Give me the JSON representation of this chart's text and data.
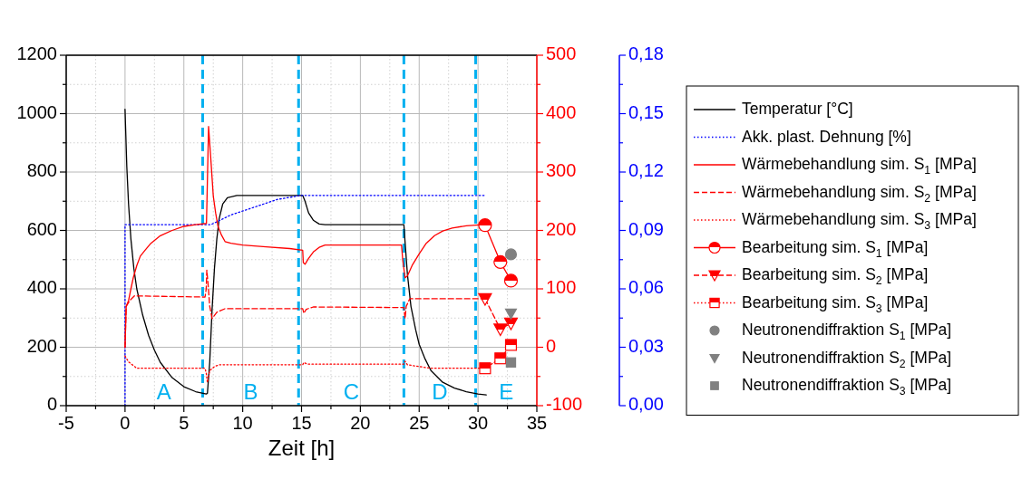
{
  "chart_data": {
    "type": "line",
    "xlabel": "Zeit [h]",
    "xlim": [
      -5,
      35
    ],
    "xticks": [
      -5,
      {
        "value": -2.5,
        "label": null
      },
      0,
      {
        "value": 2.5,
        "label": null
      },
      5,
      {
        "value": 7.5,
        "label": null
      },
      10,
      {
        "value": 12.5,
        "label": null
      },
      15,
      {
        "value": 17.5,
        "label": null
      },
      20,
      {
        "value": 22.5,
        "label": null
      },
      25,
      {
        "value": 27.5,
        "label": null
      },
      30,
      {
        "value": 32.5,
        "label": null
      },
      35
    ],
    "ylim": [
      0,
      1200
    ],
    "yticks": [
      0,
      {
        "value": 100,
        "label": null
      },
      200,
      {
        "value": 300,
        "label": null
      },
      400,
      {
        "value": 500,
        "label": null
      },
      600,
      {
        "value": 700,
        "label": null
      },
      800,
      {
        "value": 900,
        "label": null
      },
      1000,
      {
        "value": 1100,
        "label": null
      },
      1200
    ],
    "y2lim": [
      -100,
      500
    ],
    "y2ticks": [
      -100,
      {
        "value": -50,
        "label": null
      },
      0,
      {
        "value": 50,
        "label": null
      },
      100,
      {
        "value": 150,
        "label": null
      },
      200,
      {
        "value": 250,
        "label": null
      },
      300,
      {
        "value": 350,
        "label": null
      },
      400,
      {
        "value": 450,
        "label": null
      },
      500
    ],
    "y3lim": [
      0,
      0.18
    ],
    "y3ticks": [
      {
        "value": 0,
        "label": "0,00"
      },
      {
        "value": 0.015,
        "label": null
      },
      {
        "value": 0.03,
        "label": "0,03"
      },
      {
        "value": 0.045,
        "label": null
      },
      {
        "value": 0.06,
        "label": "0,06"
      },
      {
        "value": 0.075,
        "label": null
      },
      {
        "value": 0.09,
        "label": "0,09"
      },
      {
        "value": 0.105,
        "label": null
      },
      {
        "value": 0.12,
        "label": "0,12"
      },
      {
        "value": 0.135,
        "label": null
      },
      {
        "value": 0.15,
        "label": "0,15"
      },
      {
        "value": 0.165,
        "label": null
      },
      {
        "value": 0.18,
        "label": "0,18"
      }
    ],
    "grid": true,
    "legend": "right",
    "ref_lines": [
      {
        "axis": "x",
        "value": 6.6,
        "color": "#00b0f0",
        "line_style": "dashed"
      },
      {
        "axis": "x",
        "value": 14.75,
        "color": "#00b0f0",
        "line_style": "dashed"
      },
      {
        "axis": "x",
        "value": 23.7,
        "color": "#00b0f0",
        "line_style": "dashed"
      },
      {
        "axis": "x",
        "value": 29.8,
        "color": "#00b0f0",
        "line_style": "dashed"
      }
    ],
    "annotations": [
      "A",
      "B",
      "C",
      "D",
      "E"
    ],
    "series": [
      {
        "name": "Temperatur [°C]",
        "type": "line",
        "color": "#000000",
        "line_style": "solid",
        "x": [
          0,
          0.05,
          0.15,
          0.3,
          0.5,
          0.75,
          1,
          1.5,
          2,
          2.5,
          3,
          4,
          5,
          6,
          6.9,
          7.0,
          7.2,
          7.4,
          7.6,
          7.8,
          8.0,
          8.3,
          8.7,
          9.5,
          12,
          15.1,
          15.3,
          15.6,
          16,
          16.5,
          17,
          20,
          23.7,
          23.8,
          24,
          24.3,
          24.7,
          25,
          25.5,
          26,
          27,
          28,
          29,
          30,
          30.7
        ],
        "values": [
          1015,
          950,
          820,
          690,
          570,
          470,
          400,
          310,
          241,
          190,
          148,
          96,
          65,
          48,
          40,
          42,
          150,
          330,
          470,
          570,
          640,
          690,
          712,
          720,
          720,
          720,
          700,
          660,
          635,
          622,
          620,
          620,
          620,
          560,
          450,
          340,
          260,
          210,
          160,
          120,
          80,
          60,
          48,
          40,
          37
        ]
      },
      {
        "name": "Akk. plast. Dehnung [%]",
        "type": "line",
        "axis": "y3",
        "color": "#0000ff",
        "line_style": "dotted",
        "x": [
          0,
          0,
          7.3,
          8,
          9,
          10,
          11,
          12,
          13,
          14,
          14.9,
          30.6
        ],
        "values": [
          0,
          0.093,
          0.093,
          0.095,
          0.098,
          0.1,
          0.102,
          0.104,
          0.106,
          0.107,
          0.108,
          0.108
        ]
      },
      {
        "name": "Wärmebehandlung sim. S$_{1}$ [MPa]",
        "type": "line",
        "axis": "y2",
        "color": "#ff0000",
        "line_style": "solid",
        "x": [
          0,
          0.1,
          0.3,
          0.5,
          0.7,
          1,
          1.3,
          1.7,
          2.2,
          3,
          4,
          5,
          6,
          6.92,
          6.95,
          7.1,
          7.3,
          7.5,
          7.7,
          7.9,
          8.2,
          8.5,
          9,
          10,
          12,
          14,
          15.1,
          15.15,
          15.3,
          15.6,
          16,
          16.5,
          17,
          20,
          23.5,
          23.6,
          23.8,
          24,
          24.4,
          25,
          25.6,
          26.3,
          27,
          27.8,
          29,
          30.4
        ],
        "values": [
          0,
          70,
          80,
          100,
          119,
          140,
          156,
          166,
          178,
          191,
          200,
          207,
          210,
          212,
          238,
          378,
          320,
          259,
          230,
          207,
          192,
          181,
          178,
          175,
          172,
          169,
          166,
          145,
          142,
          152,
          163,
          171,
          175,
          175,
          175,
          150,
          119,
          122,
          140,
          160,
          178,
          191,
          199,
          204,
          208,
          210
        ]
      },
      {
        "name": "Wärmebehandlung sim. S$_{2}$ [MPa]",
        "type": "line",
        "axis": "y2",
        "color": "#ff0000",
        "line_style": "dashed",
        "x": [
          0,
          0.1,
          0.4,
          0.8,
          6.8,
          6.9,
          6.95,
          7.05,
          7.2,
          7.4,
          7.8,
          8.5,
          15.1,
          15.2,
          15.4,
          16,
          23.7,
          23.8,
          23.9,
          24.2,
          30.4
        ],
        "values": [
          0,
          70,
          80,
          88,
          86,
          100,
          132,
          110,
          70,
          49,
          60,
          66,
          66,
          58,
          65,
          69,
          68,
          49,
          70,
          83,
          83
        ]
      },
      {
        "name": "Wärmebehandlung sim. S$_{3}$ [MPa]",
        "type": "line",
        "axis": "y2",
        "color": "#ff0000",
        "line_style": "dotted",
        "x": [
          0,
          0.3,
          1,
          6.8,
          6.9,
          7.0,
          7.2,
          7.6,
          8,
          15.1,
          15.2,
          15.5,
          23.7,
          23.8,
          24,
          26,
          30.4
        ],
        "values": [
          -15,
          -25,
          -36,
          -36,
          -44,
          -60,
          -40,
          -33,
          -30,
          -30,
          -26,
          -29,
          -29,
          -24,
          -30,
          -36,
          -36
        ]
      },
      {
        "name": "Bearbeitung sim. S$_{1}$ [MPa]",
        "type": "line",
        "axis": "y2",
        "color": "#ff0000",
        "line_style": "solid",
        "marker": "circle",
        "x": [
          30.6,
          31.9,
          32.8
        ],
        "values": [
          209,
          146,
          114
        ]
      },
      {
        "name": "Bearbeitung sim. S$_{2}$ [MPa]",
        "type": "line",
        "axis": "y2",
        "color": "#ff0000",
        "line_style": "dashed",
        "marker": "triangle",
        "x": [
          30.6,
          31.9,
          32.8
        ],
        "values": [
          83,
          31,
          41
        ]
      },
      {
        "name": "Bearbeitung sim. S$_{3}$ [MPa]",
        "type": "line",
        "axis": "y2",
        "color": "#ff0000",
        "line_style": "dotted",
        "marker": "square",
        "x": [
          30.6,
          31.9,
          32.8
        ],
        "values": [
          -36,
          -19,
          4
        ]
      },
      {
        "name": "Neutronendiffraktion S$_{1}$ [MPa]",
        "type": "scatter",
        "axis": "y2",
        "color": "#808080",
        "marker": "circle",
        "x": [
          32.8
        ],
        "values": [
          159
        ]
      },
      {
        "name": "Neutronendiffraktion S$_{2}$ [MPa]",
        "type": "scatter",
        "axis": "y2",
        "color": "#808080",
        "marker": "triangle",
        "x": [
          32.8
        ],
        "values": [
          58
        ]
      },
      {
        "name": "Neutronendiffraktion S$_{3}$ [MPa]",
        "type": "scatter",
        "axis": "y2",
        "color": "#808080",
        "marker": "square",
        "x": [
          32.8
        ],
        "values": [
          -26
        ]
      }
    ]
  }
}
